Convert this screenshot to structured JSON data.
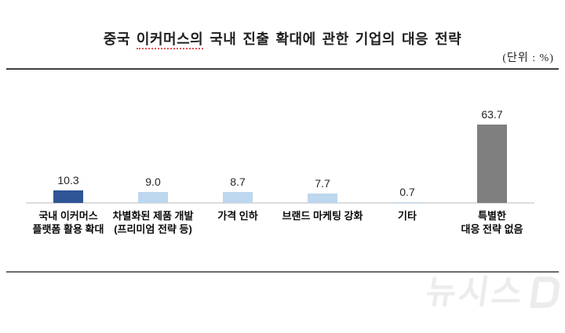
{
  "header": {
    "title_prefix": "중국 ",
    "title_underlined": "이커머스의",
    "title_suffix": " 국내 진출 확대에 관한 기업의 대응 전략",
    "unit_label": "(단위 : %)"
  },
  "chart_data": {
    "type": "bar",
    "title": "중국 이커머스의 국내 진출 확대에 관한 기업의 대응 전략",
    "unit": "%",
    "categories": [
      "국내 이커머스\n플랫폼 활용 확대",
      "차별화된 제품 개발\n(프리미엄 전략 등)",
      "가격 인하",
      "브랜드 마케팅 강화",
      "기타",
      "특별한\n대응 전략 없음"
    ],
    "values": [
      10.3,
      9.0,
      8.7,
      7.7,
      0.7,
      63.7
    ],
    "value_labels": [
      "10.3",
      "9.0",
      "8.7",
      "7.7",
      "0.7",
      "63.7"
    ],
    "bar_colors": [
      "#2F5597",
      "#BDD7EE",
      "#BDD7EE",
      "#BDD7EE",
      "#BDD7EE",
      "#7F7F7F"
    ],
    "xlabel": "",
    "ylabel": "",
    "ylim": [
      0,
      70
    ],
    "grid": false,
    "legend": false,
    "value_labels_position": "above-bar"
  },
  "colors": {
    "rule_top": "#404040",
    "rule_bottom": "#6b6b6b",
    "baseline": "#dcdcdc",
    "dark_blue": "#2F5597",
    "light_blue": "#BDD7EE",
    "gray_bar": "#7F7F7F",
    "spellcheck_underline": "#e05252"
  },
  "watermark": {
    "text": "뉴시스",
    "icon": "speech-bubble"
  }
}
